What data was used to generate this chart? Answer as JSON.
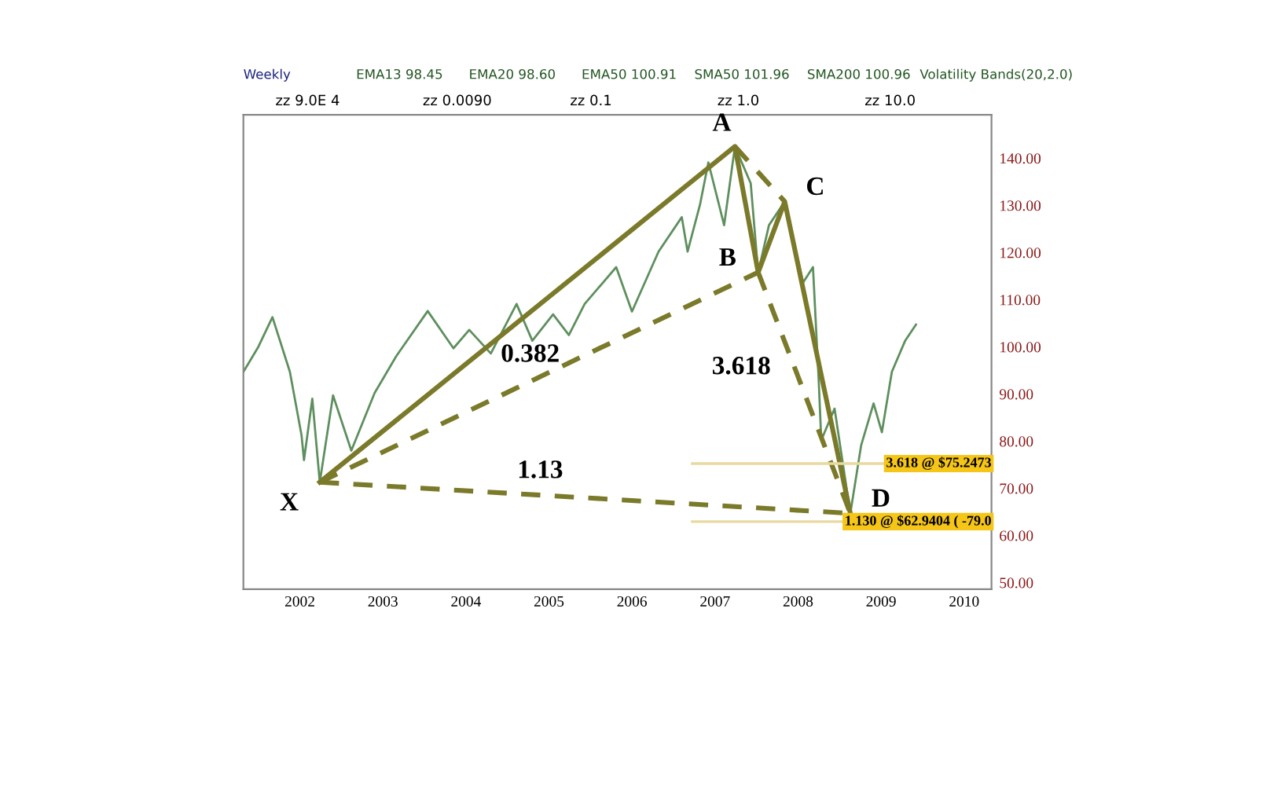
{
  "chart_data": {
    "type": "line",
    "annotations": [
      "Weekly",
      "EMA13 98.45",
      "EMA20 98.60",
      "EMA50 100.91",
      "SMA50 101.96",
      "SMA200 100.96",
      "Volatility Bands(20,2.0)",
      "zz 9.0E 4",
      "zz 0.0090",
      "zz 0.1",
      "zz 1.0",
      "zz 10.0",
      {
        "text": "A",
        "x": 2007.74,
        "y": 142.5
      },
      {
        "text": "B",
        "x": 2008.02,
        "y": 115.8
      },
      {
        "text": "C",
        "x": 2008.34,
        "y": 130.8
      },
      {
        "text": "D",
        "x": 2009.13,
        "y": 64.7
      },
      {
        "text": "X",
        "x": 2002.74,
        "y": 71.3
      },
      {
        "text": "0.382",
        "x": 2005.38,
        "y": 93.55
      },
      {
        "text": "3.618",
        "x": 2008.5,
        "y": 93.7
      },
      {
        "text": "1.13",
        "x": 2005.5,
        "y": 68.45
      }
    ],
    "x": [
      2001.82,
      2002.0,
      2002.17,
      2002.38,
      2002.52,
      2002.55,
      2002.65,
      2002.74,
      2002.9,
      2003.12,
      2003.4,
      2003.66,
      2004.04,
      2004.35,
      2004.54,
      2004.8,
      2005.11,
      2005.3,
      2005.55,
      2005.74,
      2005.93,
      2006.31,
      2006.5,
      2006.82,
      2007.1,
      2007.17,
      2007.32,
      2007.42,
      2007.61,
      2007.74,
      2007.93,
      2008.02,
      2008.15,
      2008.34,
      2008.56,
      2008.68,
      2008.75,
      2008.78,
      2008.94,
      2009.13,
      2009.26,
      2009.41,
      2009.51,
      2009.63,
      2009.79,
      2009.92
    ],
    "series": [
      {
        "color": "#5e8f5e",
        "values": [
          94.7,
          100,
          106.3,
          94.7,
          81.3,
          76,
          89,
          71.3,
          89.7,
          78,
          90.2,
          98,
          107.6,
          99.7,
          103.6,
          98.6,
          109.1,
          101.3,
          106.9,
          102.5,
          109.1,
          116.9,
          107.5,
          120.2,
          127.5,
          120.2,
          130.2,
          139.1,
          125.8,
          142.5,
          134.7,
          115.8,
          125.8,
          130.8,
          113.6,
          116.9,
          92.5,
          80.2,
          86.9,
          64.7,
          79.1,
          88,
          81.9,
          94.7,
          101.3,
          104.7
        ]
      },
      {
        "type": "line",
        "color": "#7a7a2a",
        "x": [
          2002.74,
          2007.74,
          2008.02,
          2008.34,
          2009.13
        ],
        "values": [
          71.3,
          142.5,
          115.8,
          130.8,
          64.7
        ],
        "line_style": "solid"
      },
      {
        "type": "line",
        "color": "#7a7a2a",
        "x": [
          2002.74,
          2008.02
        ],
        "values": [
          71.3,
          115.8
        ],
        "line_style": "dashed"
      },
      {
        "type": "line",
        "color": "#7a7a2a",
        "x": [
          2007.74,
          2008.34
        ],
        "values": [
          142.5,
          130.8
        ],
        "line_style": "dashed"
      },
      {
        "type": "line",
        "color": "#7a7a2a",
        "x": [
          2008.02,
          2009.13
        ],
        "values": [
          115.8,
          64.7
        ],
        "line_style": "dashed"
      },
      {
        "type": "line",
        "color": "#7a7a2a",
        "x": [
          2002.74,
          2009.13
        ],
        "values": [
          71.3,
          64.7
        ],
        "line_style": "dashed"
      }
    ],
    "ref_lines": [
      {
        "axis": "y",
        "value": 75.2473,
        "label": "3.618 @ $75.2473",
        "color": "#e8d9a0"
      },
      {
        "axis": "y",
        "value": 62.9404,
        "label": "1.130 @ $62.9404 ( -79.0",
        "color": "#e8d9a0"
      }
    ],
    "xlim": [
      2001.82,
      2010.83
    ],
    "xticks": [
      {
        "value": 2002.5,
        "label": "2002"
      },
      {
        "value": 2003.5,
        "label": "2003"
      },
      {
        "value": 2004.5,
        "label": "2004"
      },
      {
        "value": 2005.5,
        "label": "2005"
      },
      {
        "value": 2006.5,
        "label": "2006"
      },
      {
        "value": 2007.5,
        "label": "2007"
      },
      {
        "value": 2008.5,
        "label": "2008"
      },
      {
        "value": 2009.5,
        "label": "2009"
      },
      {
        "value": 2010.5,
        "label": "2010"
      }
    ],
    "ylim": [
      48.6,
      149.2
    ],
    "yticks": [
      {
        "value": 50,
        "label": "50.00"
      },
      {
        "value": 60,
        "label": "60.00"
      },
      {
        "value": 70,
        "label": "70.00"
      },
      {
        "value": 80,
        "label": "80.00"
      },
      {
        "value": 90,
        "label": "90.00"
      },
      {
        "value": 100,
        "label": "100.00"
      },
      {
        "value": 110,
        "label": "110.00"
      },
      {
        "value": 120,
        "label": "120.00"
      },
      {
        "value": 130,
        "label": "130.00"
      },
      {
        "value": 140,
        "label": "140.00"
      }
    ]
  }
}
